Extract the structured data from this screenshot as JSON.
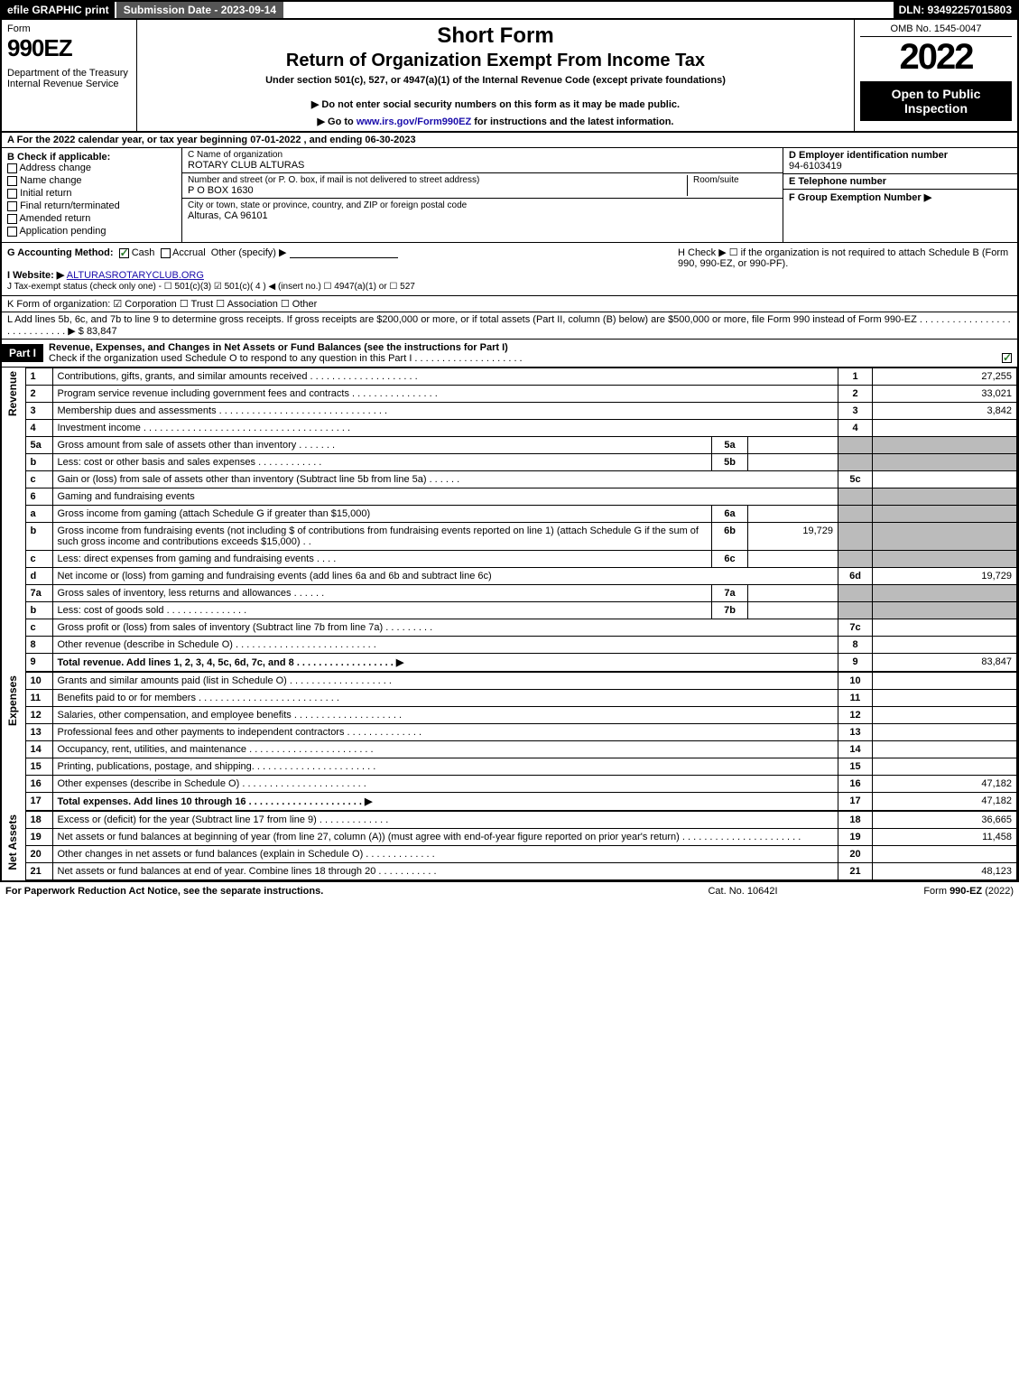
{
  "topbar": {
    "efile": "efile GRAPHIC print",
    "subdate": "Submission Date - 2023-09-14",
    "dln": "DLN: 93492257015803"
  },
  "header": {
    "formword": "Form",
    "formnum": "990EZ",
    "dept": "Department of the Treasury\nInternal Revenue Service",
    "short": "Short Form",
    "title2": "Return of Organization Exempt From Income Tax",
    "sub": "Under section 501(c), 527, or 4947(a)(1) of the Internal Revenue Code (except private foundations)",
    "note": "▶ Do not enter social security numbers on this form as it may be made public.",
    "note2": "▶ Go to www.irs.gov/Form990EZ for instructions and the latest information.",
    "omb": "OMB No. 1545-0047",
    "year": "2022",
    "open": "Open to Public Inspection"
  },
  "lineA": "A  For the 2022 calendar year, or tax year beginning 07-01-2022 , and ending 06-30-2023",
  "boxB": {
    "label": "B  Check if applicable:",
    "opts": [
      "Address change",
      "Name change",
      "Initial return",
      "Final return/terminated",
      "Amended return",
      "Application pending"
    ]
  },
  "boxC": {
    "lbl_name": "C Name of organization",
    "name": "ROTARY CLUB ALTURAS",
    "lbl_addr": "Number and street (or P. O. box, if mail is not delivered to street address)",
    "lbl_room": "Room/suite",
    "addr": "P O BOX 1630",
    "lbl_city": "City or town, state or province, country, and ZIP or foreign postal code",
    "city": "Alturas, CA  96101"
  },
  "boxD": {
    "lbl": "D Employer identification number",
    "val": "94-6103419",
    "lblE": "E Telephone number",
    "lblF": "F Group Exemption Number   ▶"
  },
  "rowG": {
    "lbl": "G Accounting Method:",
    "cash": "Cash",
    "accrual": "Accrual",
    "other": "Other (specify) ▶"
  },
  "rowH": "H  Check ▶  ☐  if the organization is not required to attach Schedule B (Form 990, 990-EZ, or 990-PF).",
  "rowI": {
    "lbl": "I Website: ▶",
    "val": "ALTURASROTARYCLUB.ORG"
  },
  "rowJ": "J Tax-exempt status (check only one) - ☐ 501(c)(3)  ☑ 501(c)( 4 ) ◀ (insert no.)  ☐ 4947(a)(1) or  ☐ 527",
  "rowK": "K Form of organization:   ☑ Corporation   ☐ Trust   ☐ Association   ☐ Other",
  "rowL": {
    "text": "L Add lines 5b, 6c, and 7b to line 9 to determine gross receipts. If gross receipts are $200,000 or more, or if total assets (Part II, column (B) below) are $500,000 or more, file Form 990 instead of Form 990-EZ  .  .  .  .  .  .  .  .  .  .  .  .  .  .  .  .  .  .  .  .  .  .  .  .  .  .  .  .  ▶ $",
    "val": "83,847"
  },
  "part1": {
    "hdr": "Part I",
    "title": "Revenue, Expenses, and Changes in Net Assets or Fund Balances (see the instructions for Part I)",
    "check": "Check if the organization used Schedule O to respond to any question in this Part I  .  .  .  .  .  .  .  .  .  .  .  .  .  .  .  .  .  .  .  ."
  },
  "sidelabels": {
    "rev": "Revenue",
    "exp": "Expenses",
    "net": "Net Assets"
  },
  "lines": [
    {
      "n": "1",
      "d": "Contributions, gifts, grants, and similar amounts received  .  .  .  .  .  .  .  .  .  .  .  .  .  .  .  .  .  .  .  .",
      "rn": "1",
      "v": "27,255"
    },
    {
      "n": "2",
      "d": "Program service revenue including government fees and contracts  .  .  .  .  .  .  .  .  .  .  .  .  .  .  .  .",
      "rn": "2",
      "v": "33,021"
    },
    {
      "n": "3",
      "d": "Membership dues and assessments  .  .  .  .  .  .  .  .  .  .  .  .  .  .  .  .  .  .  .  .  .  .  .  .  .  .  .  .  .  .  .",
      "rn": "3",
      "v": "3,842"
    },
    {
      "n": "4",
      "d": "Investment income  .  .  .  .  .  .  .  .  .  .  .  .  .  .  .  .  .  .  .  .  .  .  .  .  .  .  .  .  .  .  .  .  .  .  .  .  .  .",
      "rn": "4",
      "v": ""
    },
    {
      "n": "5a",
      "d": "Gross amount from sale of assets other than inventory  .  .  .  .  .  .  .",
      "sub": "5a",
      "sv": "",
      "grey": true
    },
    {
      "n": "b",
      "d": "Less: cost or other basis and sales expenses  .  .  .  .  .  .  .  .  .  .  .  .",
      "sub": "5b",
      "sv": "",
      "grey": true
    },
    {
      "n": "c",
      "d": "Gain or (loss) from sale of assets other than inventory (Subtract line 5b from line 5a)  .  .  .  .  .  .",
      "rn": "5c",
      "v": ""
    },
    {
      "n": "6",
      "d": "Gaming and fundraising events",
      "grey": true,
      "nornval": true
    },
    {
      "n": "a",
      "d": "Gross income from gaming (attach Schedule G if greater than $15,000)",
      "sub": "6a",
      "sv": "",
      "grey": true
    },
    {
      "n": "b",
      "d": "Gross income from fundraising events (not including $                  of contributions from fundraising events reported on line 1) (attach Schedule G if the sum of such gross income and contributions exceeds $15,000)     .   .",
      "sub": "6b",
      "sv": "19,729",
      "grey": true
    },
    {
      "n": "c",
      "d": "Less: direct expenses from gaming and fundraising events   .  .  .  .",
      "sub": "6c",
      "sv": "",
      "grey": true
    },
    {
      "n": "d",
      "d": "Net income or (loss) from gaming and fundraising events (add lines 6a and 6b and subtract line 6c)",
      "rn": "6d",
      "v": "19,729"
    },
    {
      "n": "7a",
      "d": "Gross sales of inventory, less returns and allowances  .  .  .  .  .  .",
      "sub": "7a",
      "sv": "",
      "grey": true
    },
    {
      "n": "b",
      "d": "Less: cost of goods sold        .  .  .  .  .  .  .  .  .  .  .  .  .  .  .",
      "sub": "7b",
      "sv": "",
      "grey": true
    },
    {
      "n": "c",
      "d": "Gross profit or (loss) from sales of inventory (Subtract line 7b from line 7a)  .  .  .  .  .  .  .  .  .",
      "rn": "7c",
      "v": ""
    },
    {
      "n": "8",
      "d": "Other revenue (describe in Schedule O)  .  .  .  .  .  .  .  .  .  .  .  .  .  .  .  .  .  .  .  .  .  .  .  .  .  .",
      "rn": "8",
      "v": ""
    },
    {
      "n": "9",
      "d": "Total revenue. Add lines 1, 2, 3, 4, 5c, 6d, 7c, and 8   .  .  .  .  .  .  .  .  .  .  .  .  .  .  .  .  .  .  ▶",
      "rn": "9",
      "v": "83,847",
      "bold": true
    }
  ],
  "explines": [
    {
      "n": "10",
      "d": "Grants and similar amounts paid (list in Schedule O)  .  .  .  .  .  .  .  .  .  .  .  .  .  .  .  .  .  .  .",
      "rn": "10",
      "v": ""
    },
    {
      "n": "11",
      "d": "Benefits paid to or for members       .  .  .  .  .  .  .  .  .  .  .  .  .  .  .  .  .  .  .  .  .  .  .  .  .  .",
      "rn": "11",
      "v": ""
    },
    {
      "n": "12",
      "d": "Salaries, other compensation, and employee benefits  .  .  .  .  .  .  .  .  .  .  .  .  .  .  .  .  .  .  .  .",
      "rn": "12",
      "v": ""
    },
    {
      "n": "13",
      "d": "Professional fees and other payments to independent contractors  .  .  .  .  .  .  .  .  .  .  .  .  .  .",
      "rn": "13",
      "v": ""
    },
    {
      "n": "14",
      "d": "Occupancy, rent, utilities, and maintenance  .  .  .  .  .  .  .  .  .  .  .  .  .  .  .  .  .  .  .  .  .  .  .",
      "rn": "14",
      "v": ""
    },
    {
      "n": "15",
      "d": "Printing, publications, postage, and shipping.  .  .  .  .  .  .  .  .  .  .  .  .  .  .  .  .  .  .  .  .  .  .",
      "rn": "15",
      "v": ""
    },
    {
      "n": "16",
      "d": "Other expenses (describe in Schedule O)     .  .  .  .  .  .  .  .  .  .  .  .  .  .  .  .  .  .  .  .  .  .  .",
      "rn": "16",
      "v": "47,182"
    },
    {
      "n": "17",
      "d": "Total expenses. Add lines 10 through 16      .  .  .  .  .  .  .  .  .  .  .  .  .  .  .  .  .  .  .  .  .  ▶",
      "rn": "17",
      "v": "47,182",
      "bold": true
    }
  ],
  "netlines": [
    {
      "n": "18",
      "d": "Excess or (deficit) for the year (Subtract line 17 from line 9)        .  .  .  .  .  .  .  .  .  .  .  .  .",
      "rn": "18",
      "v": "36,665"
    },
    {
      "n": "19",
      "d": "Net assets or fund balances at beginning of year (from line 27, column (A)) (must agree with end-of-year figure reported on prior year's return)  .  .  .  .  .  .  .  .  .  .  .  .  .  .  .  .  .  .  .  .  .  .",
      "rn": "19",
      "v": "11,458"
    },
    {
      "n": "20",
      "d": "Other changes in net assets or fund balances (explain in Schedule O)  .  .  .  .  .  .  .  .  .  .  .  .  .",
      "rn": "20",
      "v": ""
    },
    {
      "n": "21",
      "d": "Net assets or fund balances at end of year. Combine lines 18 through 20  .  .  .  .  .  .  .  .  .  .  .",
      "rn": "21",
      "v": "48,123"
    }
  ],
  "footer": {
    "l": "For Paperwork Reduction Act Notice, see the separate instructions.",
    "c": "Cat. No. 10642I",
    "r": "Form 990-EZ (2022)"
  }
}
